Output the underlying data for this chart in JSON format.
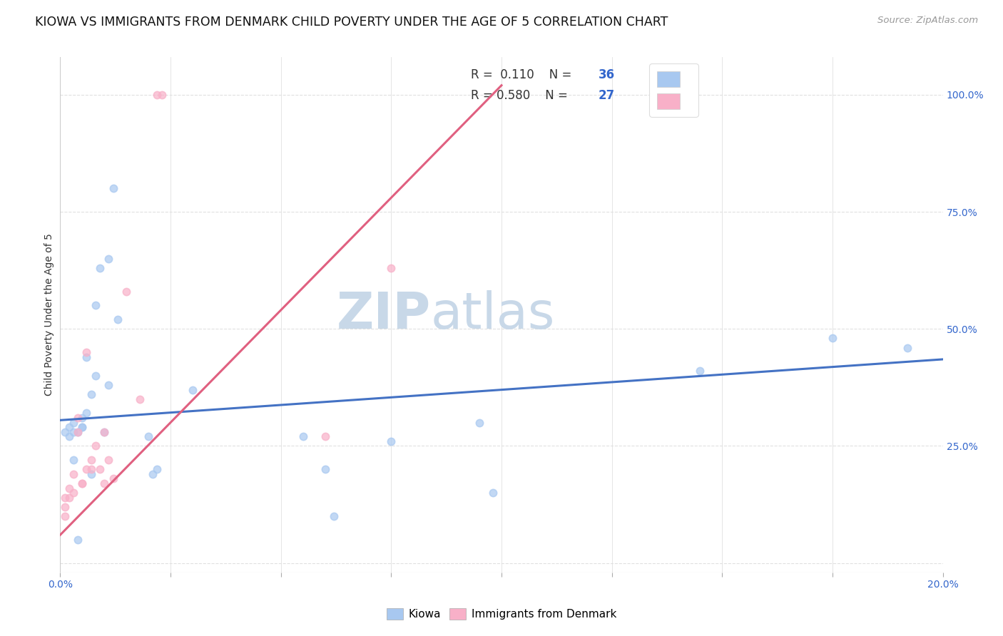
{
  "title": "KIOWA VS IMMIGRANTS FROM DENMARK CHILD POVERTY UNDER THE AGE OF 5 CORRELATION CHART",
  "source": "Source: ZipAtlas.com",
  "ylabel": "Child Poverty Under the Age of 5",
  "ytick_values": [
    0.0,
    0.25,
    0.5,
    0.75,
    1.0
  ],
  "xlim": [
    0,
    0.2
  ],
  "ylim": [
    -0.02,
    1.08
  ],
  "watermark_zip": "ZIP",
  "watermark_atlas": "atlas",
  "legend_r1": "R =  0.110",
  "legend_n1": "N = 36",
  "legend_r2": "R = 0.580",
  "legend_n2": "N = 27",
  "kiowa_scatter_x": [
    0.001,
    0.002,
    0.002,
    0.003,
    0.003,
    0.004,
    0.004,
    0.005,
    0.005,
    0.005,
    0.006,
    0.006,
    0.007,
    0.007,
    0.008,
    0.008,
    0.009,
    0.01,
    0.011,
    0.011,
    0.012,
    0.013,
    0.02,
    0.021,
    0.022,
    0.03,
    0.055,
    0.06,
    0.062,
    0.075,
    0.095,
    0.098,
    0.145,
    0.175,
    0.192,
    0.003
  ],
  "kiowa_scatter_y": [
    0.28,
    0.29,
    0.27,
    0.28,
    0.22,
    0.28,
    0.05,
    0.29,
    0.29,
    0.31,
    0.32,
    0.44,
    0.36,
    0.19,
    0.4,
    0.55,
    0.63,
    0.28,
    0.38,
    0.65,
    0.8,
    0.52,
    0.27,
    0.19,
    0.2,
    0.37,
    0.27,
    0.2,
    0.1,
    0.26,
    0.3,
    0.15,
    0.41,
    0.48,
    0.46,
    0.3
  ],
  "denmark_scatter_x": [
    0.001,
    0.001,
    0.001,
    0.002,
    0.002,
    0.003,
    0.003,
    0.004,
    0.004,
    0.005,
    0.005,
    0.006,
    0.006,
    0.007,
    0.007,
    0.008,
    0.009,
    0.01,
    0.01,
    0.011,
    0.012,
    0.015,
    0.018,
    0.022,
    0.023,
    0.06,
    0.075
  ],
  "denmark_scatter_y": [
    0.14,
    0.12,
    0.1,
    0.16,
    0.14,
    0.19,
    0.15,
    0.28,
    0.31,
    0.17,
    0.17,
    0.2,
    0.45,
    0.22,
    0.2,
    0.25,
    0.2,
    0.28,
    0.17,
    0.22,
    0.18,
    0.58,
    0.35,
    1.0,
    1.0,
    0.27,
    0.63
  ],
  "kiowa_line_x": [
    0.0,
    0.2
  ],
  "kiowa_line_y": [
    0.305,
    0.435
  ],
  "denmark_line_x": [
    0.0,
    0.1
  ],
  "denmark_line_y": [
    0.06,
    1.02
  ],
  "kiowa_color": "#a8c8f0",
  "denmark_color": "#f8b0c8",
  "kiowa_line_color": "#4472c4",
  "denmark_line_color": "#e06080",
  "kiowa_legend_color": "#a8c8f0",
  "denmark_legend_color": "#f8b0c8",
  "scatter_size": 55,
  "background_color": "#ffffff",
  "grid_color": "#e0e0e0",
  "title_fontsize": 12.5,
  "axis_label_fontsize": 10,
  "tick_fontsize": 10,
  "source_fontsize": 9.5,
  "watermark_fontsize_zip": 52,
  "watermark_fontsize_atlas": 52,
  "watermark_color": "#c8d8e8",
  "label_color": "#3366cc",
  "text_color": "#333333"
}
